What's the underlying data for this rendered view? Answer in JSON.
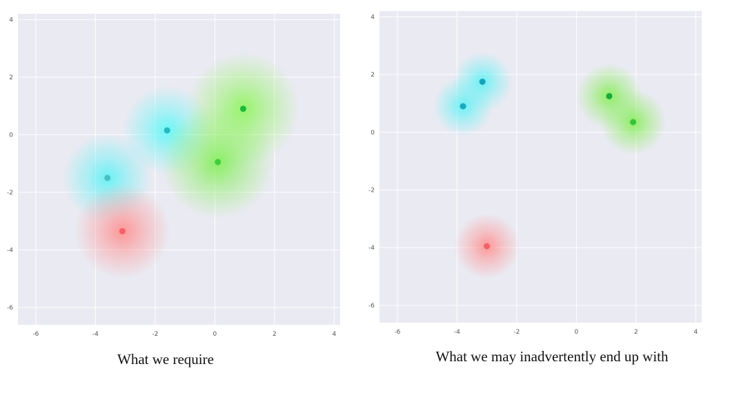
{
  "chart_data": [
    {
      "type": "scatter",
      "caption": "What we require",
      "xlim": [
        -6.6,
        4.2
      ],
      "ylim": [
        -6.6,
        4.2
      ],
      "x_ticks": [
        -6,
        -4,
        -2,
        0,
        2,
        4
      ],
      "y_ticks": [
        -6,
        -4,
        -2,
        0,
        2,
        4
      ],
      "grid": true,
      "background_color": "#eaeaf2",
      "points": [
        {
          "x": -3.6,
          "y": -1.5,
          "cluster": "cyan",
          "color": "#4bbfc4",
          "glow": "#5ef2f5",
          "spread": 1.5
        },
        {
          "x": -1.6,
          "y": 0.15,
          "cluster": "cyan",
          "color": "#27b8be",
          "glow": "#5ef7f7",
          "spread": 1.5
        },
        {
          "x": 0.1,
          "y": -0.95,
          "cluster": "green",
          "color": "#42cc3c",
          "glow": "#80ef55",
          "spread": 1.9
        },
        {
          "x": 0.95,
          "y": 0.9,
          "cluster": "green",
          "color": "#1fb83a",
          "glow": "#8ef55c",
          "spread": 1.9
        },
        {
          "x": -3.1,
          "y": -3.35,
          "cluster": "red",
          "color": "#f2626a",
          "glow": "#ff8f8f",
          "spread": 1.6
        }
      ]
    },
    {
      "type": "scatter",
      "caption": "What we may inadvertently end up with",
      "xlim": [
        -6.6,
        4.2
      ],
      "ylim": [
        -6.6,
        4.2
      ],
      "x_ticks": [
        -6,
        -4,
        -2,
        0,
        2,
        4
      ],
      "y_ticks": [
        -6,
        -4,
        -2,
        0,
        2,
        4
      ],
      "grid": true,
      "background_color": "#eaeaf2",
      "points": [
        {
          "x": -3.8,
          "y": 0.9,
          "cluster": "cyan",
          "color": "#1aa9bf",
          "glow": "#5ef2f5",
          "spread": 1.0
        },
        {
          "x": -3.15,
          "y": 1.75,
          "cluster": "cyan",
          "color": "#14a4b6",
          "glow": "#5ef2f5",
          "spread": 1.0
        },
        {
          "x": 1.1,
          "y": 1.25,
          "cluster": "green",
          "color": "#1aa83a",
          "glow": "#84ee55",
          "spread": 1.1
        },
        {
          "x": 1.9,
          "y": 0.35,
          "cluster": "green",
          "color": "#38c23c",
          "glow": "#84ee55",
          "spread": 1.1
        },
        {
          "x": -3.0,
          "y": -3.95,
          "cluster": "red",
          "color": "#f2626a",
          "glow": "#ff8f8f",
          "spread": 1.1
        }
      ]
    }
  ]
}
